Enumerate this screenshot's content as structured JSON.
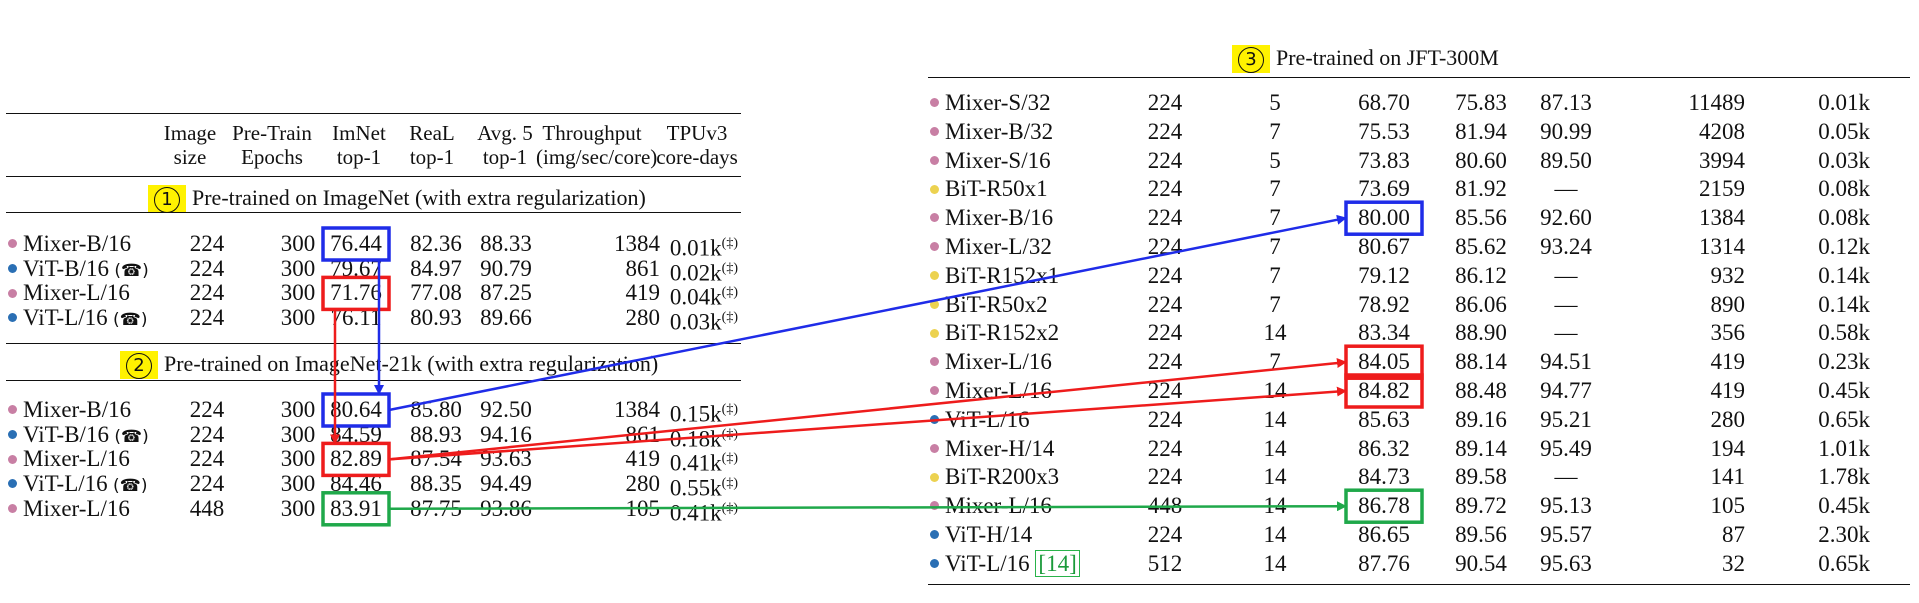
{
  "colors": {
    "mixer": "#c87fa4",
    "vit": "#2a6fb4",
    "bit": "#ecd250",
    "blue": "#1f2ce8",
    "red": "#ee1c1c",
    "green": "#1fa84a",
    "badge": "#fff200"
  },
  "left_table": {
    "headers": [
      {
        "line1": "Image",
        "line2": "size"
      },
      {
        "line1": "Pre-Train",
        "line2": "Epochs"
      },
      {
        "line1": "ImNet",
        "line2": "top-1"
      },
      {
        "line1": "ReaL",
        "line2": "top-1"
      },
      {
        "line1": "Avg. 5",
        "line2": "top-1"
      },
      {
        "line1": "Throughput",
        "line2": "(img/sec/core)"
      },
      {
        "line1": "TPUv3",
        "line2": "core-days"
      }
    ],
    "section1": {
      "number": "1",
      "label": "Pre-trained on ImageNet (with extra regularization)"
    },
    "section2": {
      "number": "2",
      "label": "Pre-trained on ImageNet-21k (with extra regularization)"
    },
    "dagger": "(‡)",
    "phone": "☎",
    "rows1": [
      {
        "kind": "mixer",
        "model": "Mixer-B/16",
        "phone": false,
        "size": "224",
        "epochs": "300",
        "imnet": "76.44",
        "real": "82.36",
        "avg5": "88.33",
        "thru": "1384",
        "tpu": "0.01k"
      },
      {
        "kind": "vit",
        "model": "ViT-B/16",
        "phone": true,
        "size": "224",
        "epochs": "300",
        "imnet": "79.67",
        "real": "84.97",
        "avg5": "90.79",
        "thru": "861",
        "tpu": "0.02k"
      },
      {
        "kind": "mixer",
        "model": "Mixer-L/16",
        "phone": false,
        "size": "224",
        "epochs": "300",
        "imnet": "71.76",
        "real": "77.08",
        "avg5": "87.25",
        "thru": "419",
        "tpu": "0.04k"
      },
      {
        "kind": "vit",
        "model": "ViT-L/16",
        "phone": true,
        "size": "224",
        "epochs": "300",
        "imnet": "76.11",
        "real": "80.93",
        "avg5": "89.66",
        "thru": "280",
        "tpu": "0.03k"
      }
    ],
    "rows2": [
      {
        "kind": "mixer",
        "model": "Mixer-B/16",
        "phone": false,
        "size": "224",
        "epochs": "300",
        "imnet": "80.64",
        "real": "85.80",
        "avg5": "92.50",
        "thru": "1384",
        "tpu": "0.15k"
      },
      {
        "kind": "vit",
        "model": "ViT-B/16",
        "phone": true,
        "size": "224",
        "epochs": "300",
        "imnet": "84.59",
        "real": "88.93",
        "avg5": "94.16",
        "thru": "861",
        "tpu": "0.18k"
      },
      {
        "kind": "mixer",
        "model": "Mixer-L/16",
        "phone": false,
        "size": "224",
        "epochs": "300",
        "imnet": "82.89",
        "real": "87.54",
        "avg5": "93.63",
        "thru": "419",
        "tpu": "0.41k"
      },
      {
        "kind": "vit",
        "model": "ViT-L/16",
        "phone": true,
        "size": "224",
        "epochs": "300",
        "imnet": "84.46",
        "real": "88.35",
        "avg5": "94.49",
        "thru": "280",
        "tpu": "0.55k"
      },
      {
        "kind": "mixer",
        "model": "Mixer-L/16",
        "phone": false,
        "size": "448",
        "epochs": "300",
        "imnet": "83.91",
        "real": "87.75",
        "avg5": "93.86",
        "thru": "105",
        "tpu": "0.41k"
      }
    ]
  },
  "right_table": {
    "section3": {
      "number": "3",
      "label": "Pre-trained on JFT-300M"
    },
    "rows": [
      {
        "kind": "mixer",
        "model": "Mixer-S/32",
        "ref": "",
        "size": "224",
        "epochs": "5",
        "imnet": "68.70",
        "real": "75.83",
        "avg5": "87.13",
        "thru": "11489",
        "tpu": "0.01k"
      },
      {
        "kind": "mixer",
        "model": "Mixer-B/32",
        "ref": "",
        "size": "224",
        "epochs": "7",
        "imnet": "75.53",
        "real": "81.94",
        "avg5": "90.99",
        "thru": "4208",
        "tpu": "0.05k"
      },
      {
        "kind": "mixer",
        "model": "Mixer-S/16",
        "ref": "",
        "size": "224",
        "epochs": "5",
        "imnet": "73.83",
        "real": "80.60",
        "avg5": "89.50",
        "thru": "3994",
        "tpu": "0.03k"
      },
      {
        "kind": "bit",
        "model": "BiT-R50x1",
        "ref": "",
        "size": "224",
        "epochs": "7",
        "imnet": "73.69",
        "real": "81.92",
        "avg5": "—",
        "thru": "2159",
        "tpu": "0.08k"
      },
      {
        "kind": "mixer",
        "model": "Mixer-B/16",
        "ref": "",
        "size": "224",
        "epochs": "7",
        "imnet": "80.00",
        "real": "85.56",
        "avg5": "92.60",
        "thru": "1384",
        "tpu": "0.08k"
      },
      {
        "kind": "mixer",
        "model": "Mixer-L/32",
        "ref": "",
        "size": "224",
        "epochs": "7",
        "imnet": "80.67",
        "real": "85.62",
        "avg5": "93.24",
        "thru": "1314",
        "tpu": "0.12k"
      },
      {
        "kind": "bit",
        "model": "BiT-R152x1",
        "ref": "",
        "size": "224",
        "epochs": "7",
        "imnet": "79.12",
        "real": "86.12",
        "avg5": "—",
        "thru": "932",
        "tpu": "0.14k"
      },
      {
        "kind": "bit",
        "model": "BiT-R50x2",
        "ref": "",
        "size": "224",
        "epochs": "7",
        "imnet": "78.92",
        "real": "86.06",
        "avg5": "—",
        "thru": "890",
        "tpu": "0.14k"
      },
      {
        "kind": "bit",
        "model": "BiT-R152x2",
        "ref": "",
        "size": "224",
        "epochs": "14",
        "imnet": "83.34",
        "real": "88.90",
        "avg5": "—",
        "thru": "356",
        "tpu": "0.58k"
      },
      {
        "kind": "mixer",
        "model": "Mixer-L/16",
        "ref": "",
        "size": "224",
        "epochs": "7",
        "imnet": "84.05",
        "real": "88.14",
        "avg5": "94.51",
        "thru": "419",
        "tpu": "0.23k"
      },
      {
        "kind": "mixer",
        "model": "Mixer-L/16",
        "ref": "",
        "size": "224",
        "epochs": "14",
        "imnet": "84.82",
        "real": "88.48",
        "avg5": "94.77",
        "thru": "419",
        "tpu": "0.45k"
      },
      {
        "kind": "vit",
        "model": "ViT-L/16",
        "ref": "",
        "size": "224",
        "epochs": "14",
        "imnet": "85.63",
        "real": "89.16",
        "avg5": "95.21",
        "thru": "280",
        "tpu": "0.65k"
      },
      {
        "kind": "mixer",
        "model": "Mixer-H/14",
        "ref": "",
        "size": "224",
        "epochs": "14",
        "imnet": "86.32",
        "real": "89.14",
        "avg5": "95.49",
        "thru": "194",
        "tpu": "1.01k"
      },
      {
        "kind": "bit",
        "model": "BiT-R200x3",
        "ref": "",
        "size": "224",
        "epochs": "14",
        "imnet": "84.73",
        "real": "89.58",
        "avg5": "—",
        "thru": "141",
        "tpu": "1.78k"
      },
      {
        "kind": "mixer",
        "model": "Mixer-L/16",
        "ref": "",
        "size": "448",
        "epochs": "14",
        "imnet": "86.78",
        "real": "89.72",
        "avg5": "95.13",
        "thru": "105",
        "tpu": "0.45k"
      },
      {
        "kind": "vit",
        "model": "ViT-H/14",
        "ref": "",
        "size": "224",
        "epochs": "14",
        "imnet": "86.65",
        "real": "89.56",
        "avg5": "95.57",
        "thru": "87",
        "tpu": "2.30k"
      },
      {
        "kind": "vit",
        "model": "ViT-L/16",
        "ref": "[14]",
        "size": "512",
        "epochs": "14",
        "imnet": "87.76",
        "real": "90.54",
        "avg5": "95.63",
        "thru": "32",
        "tpu": "0.65k"
      }
    ]
  },
  "highlights": [
    {
      "from": "L1-0",
      "to": "L2-0",
      "color": "blue"
    },
    {
      "from": "L2-0",
      "to": "R-4",
      "color": "blue"
    },
    {
      "from": "L1-2",
      "to": "L2-2",
      "color": "red"
    },
    {
      "from": "L2-2",
      "to": "R-9",
      "color": "red"
    },
    {
      "from": "L2-2",
      "to": "R-10",
      "color": "red"
    },
    {
      "from": "L2-4",
      "to": "R-14",
      "color": "green"
    }
  ]
}
